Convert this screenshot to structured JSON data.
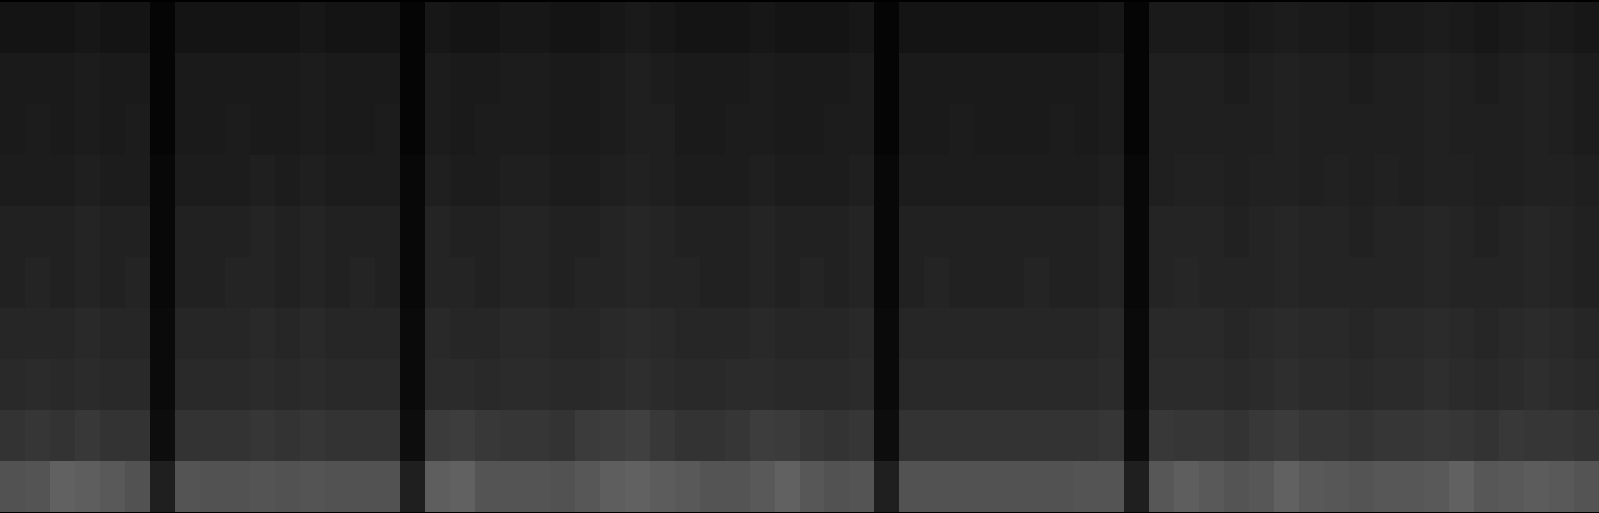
{
  "chart_data": {
    "type": "heatmap",
    "tick_labels": false,
    "color_range": [
      0,
      100
    ],
    "cells": [
      [
        8,
        8,
        8,
        9,
        8,
        8,
        2,
        8,
        8,
        8,
        8,
        8,
        9,
        8,
        8,
        8,
        2,
        9,
        8,
        8,
        9,
        9,
        8,
        8,
        9,
        10,
        9,
        8,
        8,
        8,
        9,
        8,
        8,
        8,
        9,
        2,
        8,
        8,
        8,
        8,
        8,
        8,
        8,
        8,
        9,
        2,
        10,
        10,
        10,
        9,
        10,
        11,
        10,
        10,
        9,
        10,
        10,
        11,
        10,
        9,
        10,
        11,
        10,
        9
      ],
      [
        10,
        10,
        10,
        11,
        10,
        10,
        2,
        10,
        10,
        10,
        10,
        10,
        11,
        10,
        10,
        10,
        2,
        11,
        10,
        10,
        11,
        11,
        10,
        10,
        11,
        12,
        11,
        10,
        10,
        10,
        11,
        10,
        10,
        10,
        11,
        2,
        10,
        10,
        10,
        10,
        10,
        10,
        10,
        10,
        11,
        2,
        12,
        12,
        12,
        11,
        12,
        13,
        12,
        12,
        11,
        12,
        12,
        13,
        12,
        11,
        12,
        13,
        12,
        11
      ],
      [
        10,
        11,
        10,
        11,
        10,
        11,
        2,
        10,
        10,
        11,
        10,
        10,
        11,
        10,
        10,
        11,
        2,
        11,
        10,
        11,
        11,
        11,
        10,
        10,
        11,
        12,
        12,
        10,
        10,
        11,
        11,
        10,
        10,
        11,
        11,
        2,
        10,
        10,
        11,
        10,
        10,
        10,
        11,
        10,
        11,
        2,
        12,
        12,
        12,
        12,
        12,
        13,
        12,
        12,
        12,
        12,
        12,
        13,
        12,
        12,
        12,
        13,
        12,
        11
      ],
      [
        11,
        11,
        11,
        12,
        11,
        11,
        3,
        11,
        11,
        11,
        12,
        11,
        12,
        11,
        11,
        11,
        3,
        12,
        11,
        11,
        12,
        12,
        11,
        11,
        12,
        13,
        12,
        11,
        11,
        11,
        12,
        11,
        11,
        11,
        12,
        3,
        11,
        11,
        11,
        11,
        11,
        11,
        11,
        11,
        12,
        3,
        12,
        13,
        13,
        12,
        13,
        13,
        12,
        13,
        12,
        13,
        12,
        13,
        13,
        12,
        12,
        13,
        13,
        12
      ],
      [
        13,
        13,
        13,
        14,
        13,
        13,
        3,
        13,
        13,
        13,
        14,
        13,
        14,
        13,
        13,
        13,
        3,
        14,
        13,
        13,
        14,
        14,
        13,
        13,
        14,
        15,
        14,
        13,
        13,
        13,
        14,
        13,
        13,
        13,
        14,
        3,
        13,
        13,
        13,
        13,
        13,
        13,
        13,
        13,
        14,
        3,
        14,
        14,
        14,
        13,
        14,
        15,
        14,
        14,
        13,
        14,
        14,
        15,
        14,
        13,
        14,
        15,
        14,
        13
      ],
      [
        13,
        14,
        13,
        14,
        13,
        14,
        3,
        13,
        13,
        14,
        14,
        13,
        14,
        13,
        14,
        13,
        3,
        14,
        14,
        13,
        14,
        14,
        13,
        14,
        14,
        15,
        14,
        14,
        13,
        13,
        14,
        13,
        14,
        13,
        14,
        3,
        13,
        14,
        13,
        13,
        13,
        14,
        13,
        13,
        14,
        3,
        14,
        15,
        14,
        14,
        14,
        15,
        14,
        14,
        14,
        14,
        14,
        15,
        14,
        14,
        14,
        15,
        14,
        13
      ],
      [
        15,
        15,
        15,
        16,
        15,
        15,
        4,
        15,
        15,
        15,
        16,
        15,
        16,
        15,
        15,
        15,
        4,
        16,
        15,
        15,
        16,
        16,
        15,
        15,
        16,
        17,
        16,
        15,
        15,
        15,
        16,
        15,
        15,
        15,
        16,
        4,
        15,
        15,
        15,
        15,
        15,
        15,
        15,
        15,
        16,
        4,
        16,
        16,
        16,
        15,
        16,
        17,
        16,
        16,
        15,
        16,
        16,
        17,
        16,
        15,
        16,
        17,
        16,
        15
      ],
      [
        16,
        17,
        16,
        17,
        16,
        16,
        4,
        16,
        16,
        16,
        17,
        16,
        17,
        16,
        16,
        16,
        4,
        17,
        17,
        16,
        17,
        17,
        16,
        16,
        17,
        18,
        17,
        16,
        16,
        17,
        17,
        16,
        16,
        16,
        17,
        4,
        16,
        16,
        16,
        16,
        16,
        16,
        16,
        16,
        17,
        4,
        17,
        17,
        17,
        16,
        17,
        18,
        17,
        17,
        16,
        17,
        17,
        18,
        17,
        16,
        17,
        18,
        17,
        16
      ],
      [
        20,
        21,
        20,
        22,
        20,
        20,
        5,
        20,
        20,
        20,
        21,
        20,
        21,
        20,
        20,
        20,
        5,
        23,
        24,
        22,
        21,
        21,
        20,
        23,
        24,
        25,
        22,
        20,
        20,
        21,
        24,
        23,
        21,
        20,
        21,
        5,
        20,
        20,
        20,
        20,
        20,
        20,
        20,
        20,
        21,
        5,
        22,
        21,
        21,
        20,
        22,
        23,
        21,
        21,
        20,
        21,
        21,
        22,
        21,
        20,
        22,
        21,
        21,
        20
      ],
      [
        32,
        33,
        38,
        37,
        35,
        32,
        12,
        33,
        32,
        32,
        33,
        32,
        33,
        32,
        32,
        32,
        12,
        37,
        38,
        33,
        33,
        33,
        32,
        34,
        37,
        38,
        36,
        35,
        33,
        33,
        35,
        38,
        34,
        32,
        33,
        12,
        32,
        32,
        32,
        32,
        32,
        32,
        32,
        33,
        33,
        12,
        34,
        37,
        35,
        33,
        34,
        38,
        35,
        34,
        33,
        34,
        34,
        35,
        38,
        34,
        35,
        36,
        35,
        33
      ]
    ]
  }
}
